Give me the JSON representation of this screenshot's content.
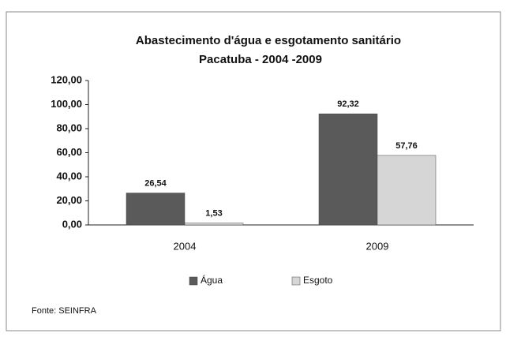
{
  "chart_data": {
    "type": "bar",
    "title": "Abastecimento d'água e esgotamento sanitário",
    "subtitle": "Pacatuba - 2004 -2009",
    "categories": [
      "2004",
      "2009"
    ],
    "series": [
      {
        "name": "Água",
        "color": "#5a5a5a",
        "values": [
          26.54,
          92.32
        ],
        "value_labels": [
          "26,54",
          "92,32"
        ]
      },
      {
        "name": "Esgoto",
        "color": "#d6d6d6",
        "values": [
          1.53,
          57.76
        ],
        "value_labels": [
          "1,53",
          "57,76"
        ]
      }
    ],
    "ylim": [
      0,
      120
    ],
    "yticks": [
      {
        "value": 0,
        "label": "0,00"
      },
      {
        "value": 20,
        "label": "20,00"
      },
      {
        "value": 40,
        "label": "40,00"
      },
      {
        "value": 60,
        "label": "60,00"
      },
      {
        "value": 80,
        "label": "80,00"
      },
      {
        "value": 100,
        "label": "100,00"
      },
      {
        "value": 120,
        "label": "120,00"
      }
    ],
    "source": "Fonte: SEINFRA"
  }
}
